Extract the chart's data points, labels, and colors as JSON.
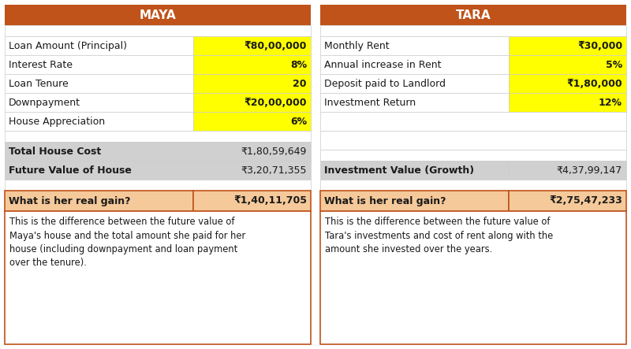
{
  "maya_title": "MAYA",
  "tara_title": "TARA",
  "header_color": "#C0531A",
  "header_text_color": "#FFFFFF",
  "yellow_bg": "#FFFF00",
  "white_bg": "#FFFFFF",
  "light_gray_bg": "#D0D0D0",
  "light_orange_bg": "#F5C99A",
  "border_color": "#C0531A",
  "grid_color": "#CCCCCC",
  "maya_rows": [
    {
      "label": "Loan Amount (Principal)",
      "value": "₹80,00,000",
      "yellow": true
    },
    {
      "label": "Interest Rate",
      "value": "8%",
      "yellow": true
    },
    {
      "label": "Loan Tenure",
      "value": "20",
      "yellow": true
    },
    {
      "label": "Downpayment",
      "value": "₹20,00,000",
      "yellow": true
    },
    {
      "label": "House Appreciation",
      "value": "6%",
      "yellow": true
    }
  ],
  "maya_summary_rows": [
    {
      "label": "Total House Cost",
      "value": "₹1,80,59,649"
    },
    {
      "label": "Future Value of House",
      "value": "₹3,20,71,355"
    }
  ],
  "maya_gain_label": "What is her real gain?",
  "maya_gain_value": "₹1,40,11,705",
  "maya_note": "This is the difference between the future value of\nMaya's house and the total amount she paid for her\nhouse (including downpayment and loan payment\nover the tenure).",
  "tara_rows": [
    {
      "label": "Monthly Rent",
      "value": "₹30,000",
      "yellow": true
    },
    {
      "label": "Annual increase in Rent",
      "value": "5%",
      "yellow": true
    },
    {
      "label": "Deposit paid to Landlord",
      "value": "₹1,80,000",
      "yellow": true
    },
    {
      "label": "Investment Return",
      "value": "12%",
      "yellow": true
    }
  ],
  "tara_empty_rows": 2,
  "tara_summary_rows": [
    {
      "label": "Investment Value (Growth)",
      "value": "₹4,37,99,147"
    }
  ],
  "tara_gain_label": "What is her real gain?",
  "tara_gain_value": "₹2,75,47,233",
  "tara_note": "This is the difference between the future value of\nTara's investments and cost of rent along with the\namount she invested over the years.",
  "fig_w": 8.0,
  "fig_h": 4.43,
  "dpi": 100
}
